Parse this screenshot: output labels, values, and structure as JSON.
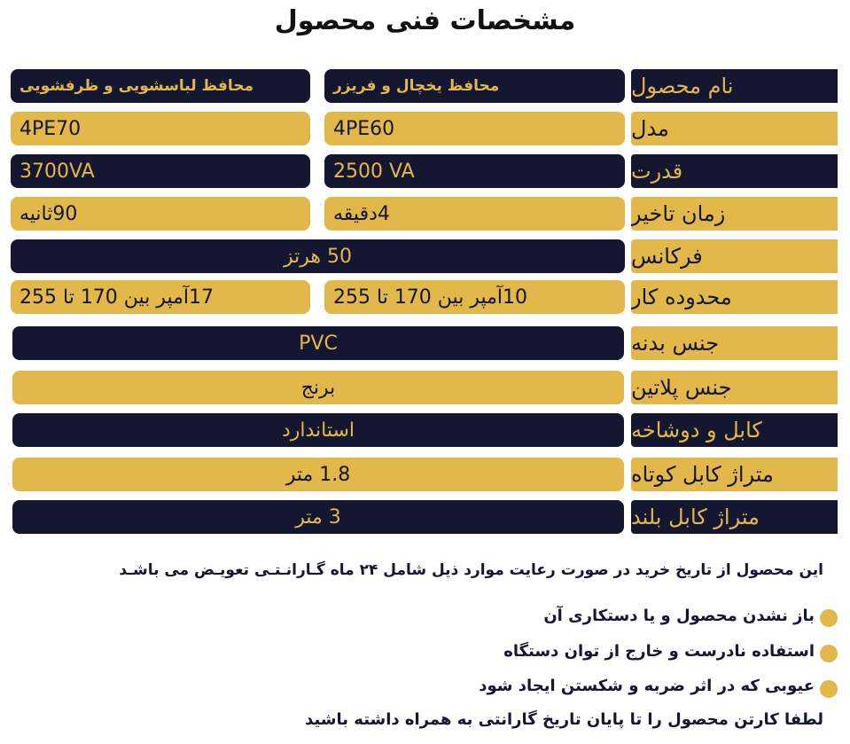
{
  "title": "مشخصات فنی محصول",
  "colors": {
    "navy": "#15162f",
    "gold": "#e2b84a"
  },
  "rows": [
    {
      "label": "نام محصول",
      "col_a": "محافظ یخچال و فریزر",
      "col_b": "محافظ لباسشویی و ظرفشویی"
    },
    {
      "label": "مدل",
      "col_a": "4PE60",
      "col_b": "4PE70"
    },
    {
      "label": "قدرت",
      "col_a": "2500 VA",
      "col_b": "3700VA"
    },
    {
      "label": "زمان تاخیر",
      "col_a": "4دقیقه",
      "col_b": "90ثانیه"
    },
    {
      "label": "فرکانس",
      "value": "50 هرتز"
    },
    {
      "label": "محدوده کار",
      "col_a": "10آمپر بین 170 تا 255",
      "col_b": "17آمپر بین 170 تا 255"
    },
    {
      "label": "جنس بدنه",
      "value": "PVC"
    },
    {
      "label": "جنس پلاتین",
      "value": "برنج"
    },
    {
      "label": "کابل و دوشاخه",
      "value": "استاندارد"
    },
    {
      "label": "متراژ کابل کوتاه",
      "value": "1.8 متر"
    },
    {
      "label": "متراژ کابل بلند",
      "value": "3 متر"
    }
  ],
  "warranty": {
    "intro": "این محصول از تاریخ خرید در صورت رعایت موارد ذیل شامل ۲۴ ماه گـارانـتـی تعویـض می باشـد",
    "conditions": [
      "باز نشدن محصول و یا دستکاری آن",
      "استفاده نادرست و خارج از توان دستگاه",
      "عیوبی که در اثر ضربه و شکستن ایجاد شود"
    ],
    "footer": "لطفا کارتن محصول را تا پایان تاریخ گارانتی به همراه داشته باشید"
  }
}
